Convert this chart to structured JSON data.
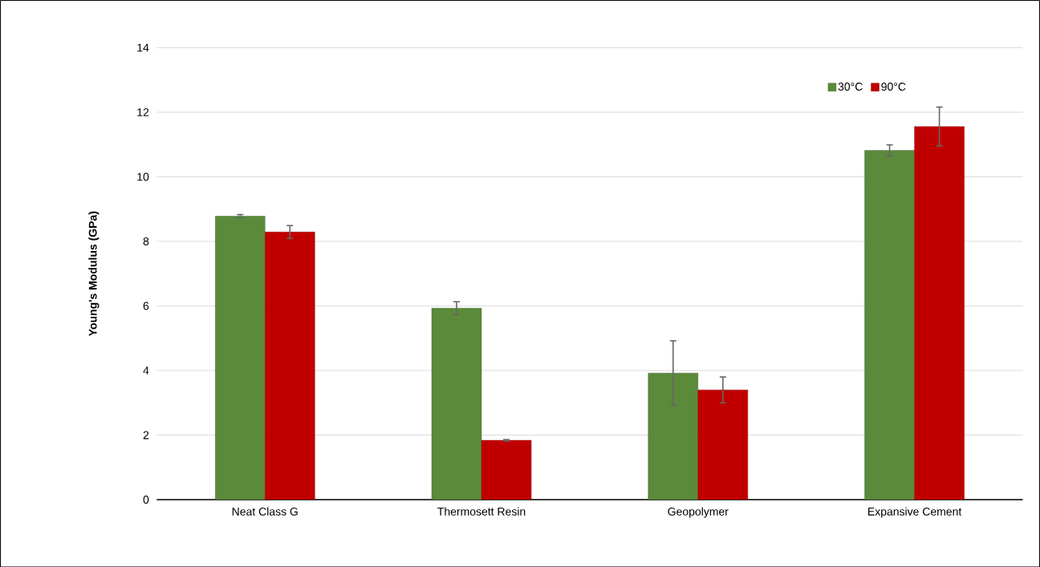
{
  "chart_data": {
    "type": "bar",
    "ylabel": "Young's Modulus (GPa)",
    "categories": [
      "Neat Class G",
      "Thermosett Resin",
      "Geopolymer",
      "Expansive Cement"
    ],
    "series": [
      {
        "name": "30°C",
        "color": "#5a8a3a",
        "values": [
          8.78,
          5.93,
          3.92,
          10.82
        ],
        "errors": [
          0.05,
          0.2,
          1.0,
          0.17
        ]
      },
      {
        "name": "90°C",
        "color": "#c00000",
        "values": [
          8.29,
          1.84,
          3.4,
          11.56
        ],
        "errors": [
          0.2,
          0.02,
          0.4,
          0.6
        ]
      }
    ],
    "ylim": [
      0,
      14
    ],
    "yticks": [
      0,
      2,
      4,
      6,
      8,
      10,
      12,
      14
    ],
    "grid": "y",
    "legend": "top right"
  }
}
